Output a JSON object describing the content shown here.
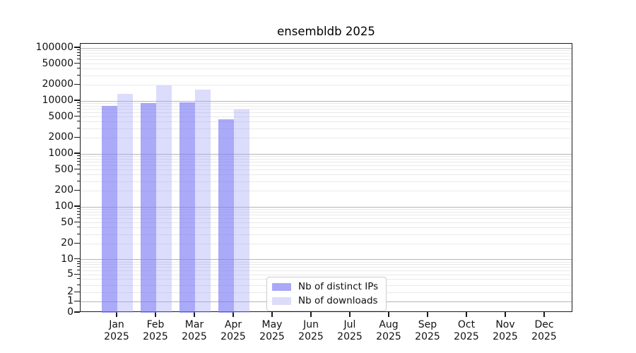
{
  "title": "ensembldb 2025",
  "colors": {
    "grid_major": "#b5b5b5",
    "grid_minor": "#e9e9e9",
    "spine": "#1a1a1a",
    "text": "#111111",
    "legend_border": "#cccccc",
    "ips_fill": "rgba(125,125,244,0.65)",
    "downloads_fill": "rgba(162,162,246,0.38)",
    "ips_solid": "#a9a9f6",
    "downloads_solid": "#dcdcfa"
  },
  "chart_data": {
    "type": "bar",
    "title": "ensembldb 2025",
    "y_scale": "symlog",
    "ylim": [
      0,
      121000
    ],
    "y_ticks": [
      0,
      1,
      2,
      5,
      10,
      20,
      50,
      100,
      200,
      500,
      1000,
      2000,
      5000,
      10000,
      20000,
      50000,
      100000
    ],
    "grid": "both",
    "xlabel": "",
    "ylabel": "",
    "categories": [
      "Jan",
      "Feb",
      "Mar",
      "Apr",
      "May",
      "Jun",
      "Jul",
      "Aug",
      "Sep",
      "Oct",
      "Nov",
      "Dec"
    ],
    "category_year": "2025",
    "series": [
      {
        "name": "Nb of distinct IPs",
        "color": "#a9a9f6",
        "fill": "rgba(125,125,244,0.65)",
        "values": [
          8000,
          9200,
          9500,
          4500,
          null,
          null,
          null,
          null,
          null,
          null,
          null,
          null
        ]
      },
      {
        "name": "Nb of downloads",
        "color": "#dcdcfa",
        "fill": "rgba(162,162,246,0.38)",
        "values": [
          13700,
          19400,
          16500,
          6900,
          null,
          null,
          null,
          null,
          null,
          null,
          null,
          null
        ]
      }
    ],
    "legend_position": "inside lower-center"
  }
}
